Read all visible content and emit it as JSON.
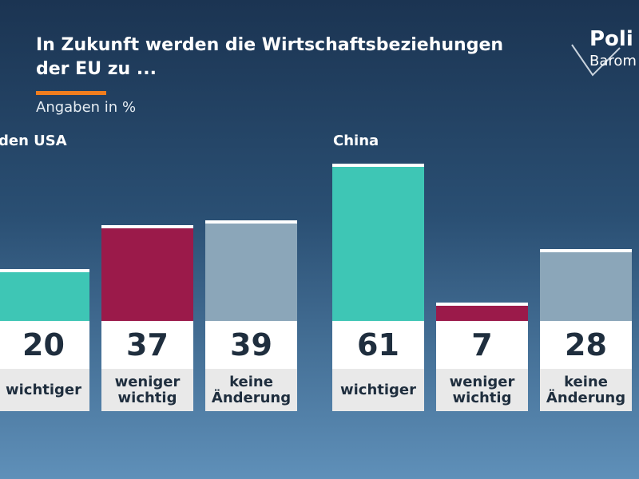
{
  "header": {
    "title": "In Zukunft werden die Wirtschaftsbeziehungen der EU zu ...",
    "subtitle": "Angaben in %"
  },
  "logo": {
    "line1": "Poli",
    "line2": "Barom"
  },
  "chart_data": [
    {
      "type": "bar",
      "title": "den USA",
      "categories": [
        "wichtiger",
        "weniger wichtig",
        "keine Änderung"
      ],
      "values": [
        20,
        37,
        39
      ],
      "colors": [
        "#3ec6b5",
        "#9b1a4a",
        "#8ba6b9"
      ]
    },
    {
      "type": "bar",
      "title": "China",
      "categories": [
        "wichtiger",
        "weniger wichtig",
        "keine Änderung"
      ],
      "values": [
        61,
        7,
        28
      ],
      "colors": [
        "#3ec6b5",
        "#9b1a4a",
        "#8ba6b9"
      ]
    }
  ]
}
